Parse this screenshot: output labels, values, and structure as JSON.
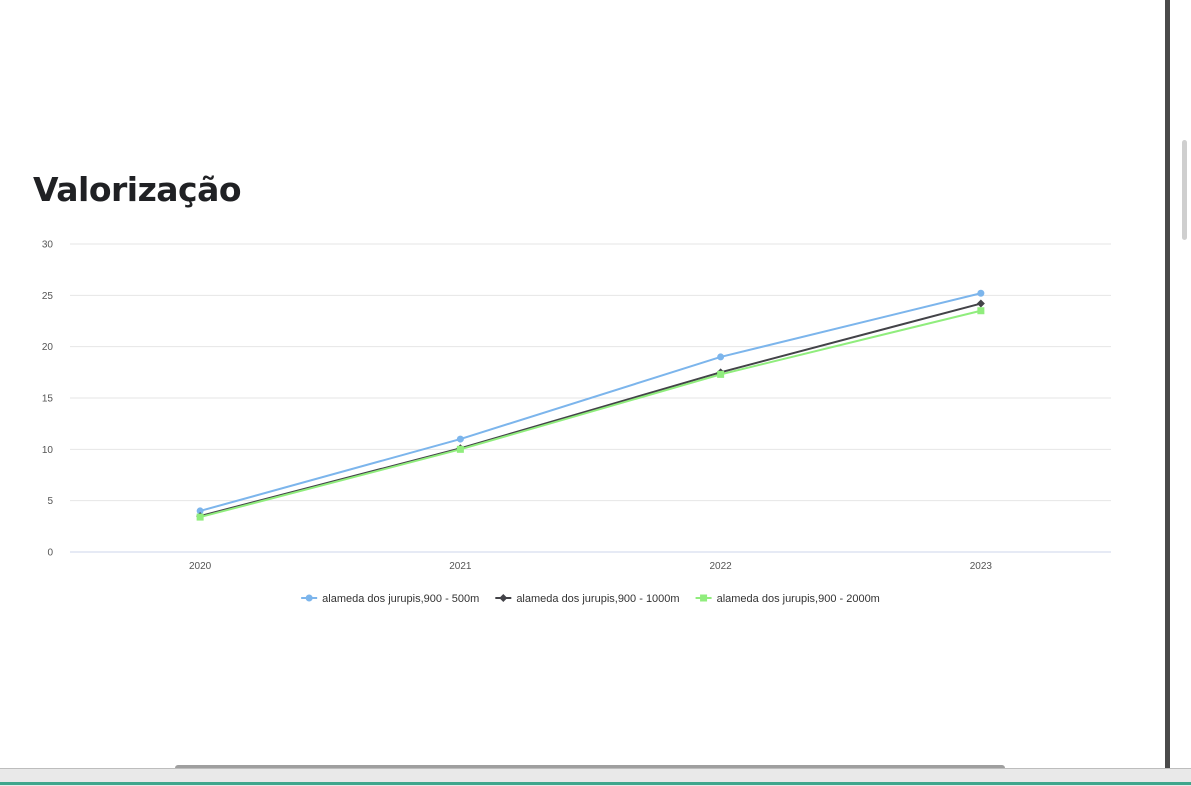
{
  "page": {
    "title": "Valorização"
  },
  "chart_data": {
    "type": "line",
    "title": "Valorização",
    "xlabel": "",
    "ylabel": "",
    "categories": [
      "2020",
      "2021",
      "2022",
      "2023"
    ],
    "ylim": [
      0,
      30
    ],
    "yticks": [
      0,
      5,
      10,
      15,
      20,
      25,
      30
    ],
    "grid": true,
    "legend_position": "bottom",
    "series": [
      {
        "name": "alameda dos jurupis,900 - 500m",
        "values": [
          4.0,
          11.0,
          19.0,
          25.2
        ],
        "color": "#7cb5ec",
        "marker": "circle"
      },
      {
        "name": "alameda dos jurupis,900 - 1000m",
        "values": [
          3.5,
          10.1,
          17.5,
          24.2
        ],
        "color": "#434348",
        "marker": "diamond"
      },
      {
        "name": "alameda dos jurupis,900 - 2000m",
        "values": [
          3.4,
          10.0,
          17.3,
          23.5
        ],
        "color": "#90ed7d",
        "marker": "square"
      }
    ]
  }
}
